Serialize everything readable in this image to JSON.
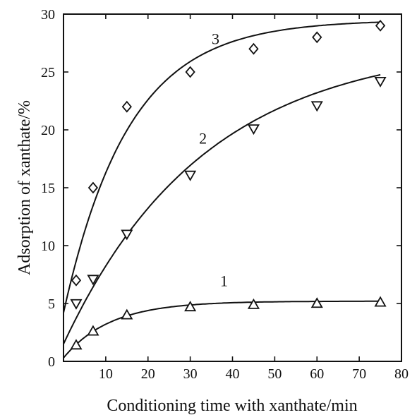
{
  "chart_data": {
    "type": "scatter",
    "title": "",
    "xlabel": "Conditioning time with xanthate/min",
    "ylabel": "Adsorption of xanthate/%",
    "xlim": [
      0,
      80
    ],
    "ylim": [
      0,
      30
    ],
    "xticks": [
      10,
      20,
      30,
      40,
      50,
      60,
      70,
      80
    ],
    "xtick_labels": [
      "10",
      "20",
      "30",
      "40",
      "50",
      "60",
      "70",
      "80"
    ],
    "yticks": [
      0,
      5,
      10,
      15,
      20,
      25,
      30
    ],
    "ytick_labels": [
      "0",
      "5",
      "10",
      "15",
      "20",
      "25",
      "30"
    ],
    "grid": false,
    "legend": "none",
    "series": [
      {
        "name": "1",
        "marker": "triangle-up",
        "x": [
          3,
          7,
          15,
          30,
          45,
          60,
          75
        ],
        "y": [
          1.4,
          2.6,
          4.0,
          4.7,
          4.9,
          5.0,
          5.1
        ],
        "fit": {
          "plateau": 5.2,
          "rate": 0.09,
          "offset": 0.3
        }
      },
      {
        "name": "2",
        "marker": "triangle-down",
        "x": [
          3,
          7,
          15,
          30,
          45,
          60,
          75
        ],
        "y": [
          5.0,
          7.1,
          11.0,
          16.1,
          20.1,
          22.1,
          24.2
        ],
        "fit": {
          "plateau": 27.5,
          "rate": 0.03,
          "offset": 1.5
        }
      },
      {
        "name": "3",
        "marker": "diamond",
        "x": [
          3,
          7,
          15,
          30,
          45,
          60,
          75
        ],
        "y": [
          7.0,
          15.0,
          22.0,
          25.0,
          27.0,
          28.0,
          29.0
        ],
        "fit": {
          "plateau": 29.5,
          "rate": 0.065,
          "offset": 4.2
        }
      }
    ],
    "annotations": [
      {
        "text": "1",
        "x": 38,
        "y": 6.5
      },
      {
        "text": "2",
        "x": 33,
        "y": 18.8
      },
      {
        "text": "3",
        "x": 36,
        "y": 27.4
      }
    ]
  }
}
